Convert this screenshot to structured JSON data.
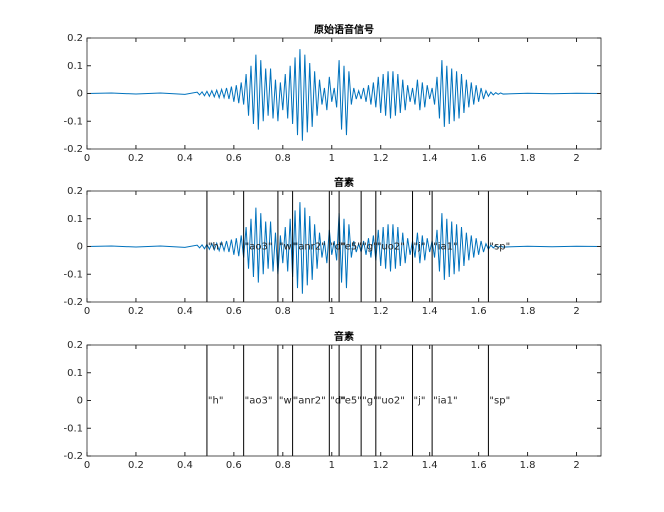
{
  "chart_data": [
    {
      "type": "line",
      "title": "原始语音信号",
      "x": [
        0,
        0.1,
        0.2,
        0.3,
        0.4,
        0.45,
        0.46,
        0.47,
        0.48,
        0.49,
        0.5,
        0.51,
        0.52,
        0.53,
        0.54,
        0.55,
        0.56,
        0.57,
        0.58,
        0.59,
        0.6,
        0.61,
        0.62,
        0.63,
        0.64,
        0.65,
        0.66,
        0.67,
        0.68,
        0.69,
        0.7,
        0.71,
        0.72,
        0.73,
        0.74,
        0.75,
        0.76,
        0.77,
        0.78,
        0.79,
        0.8,
        0.81,
        0.82,
        0.83,
        0.84,
        0.85,
        0.86,
        0.87,
        0.88,
        0.89,
        0.9,
        0.91,
        0.92,
        0.93,
        0.94,
        0.95,
        0.96,
        0.97,
        0.98,
        0.99,
        1,
        1.01,
        1.02,
        1.03,
        1.04,
        1.05,
        1.06,
        1.07,
        1.08,
        1.09,
        1.1,
        1.11,
        1.12,
        1.13,
        1.14,
        1.15,
        1.16,
        1.17,
        1.18,
        1.19,
        1.2,
        1.21,
        1.22,
        1.23,
        1.24,
        1.25,
        1.26,
        1.27,
        1.28,
        1.29,
        1.3,
        1.31,
        1.32,
        1.33,
        1.34,
        1.35,
        1.36,
        1.37,
        1.38,
        1.39,
        1.4,
        1.41,
        1.42,
        1.43,
        1.44,
        1.45,
        1.46,
        1.47,
        1.48,
        1.49,
        1.5,
        1.51,
        1.52,
        1.53,
        1.54,
        1.55,
        1.56,
        1.57,
        1.58,
        1.59,
        1.6,
        1.61,
        1.62,
        1.63,
        1.64,
        1.65,
        1.66,
        1.67,
        1.68,
        1.69,
        1.7,
        1.8,
        1.9,
        2,
        2.1
      ],
      "series": [
        {
          "color": "#0072bd",
          "values": [
            0,
            0.002,
            -0.002,
            0.002,
            -0.003,
            0.005,
            -0.005,
            0.006,
            -0.008,
            0.008,
            -0.01,
            0.01,
            -0.012,
            0.012,
            -0.015,
            0.015,
            -0.015,
            0.02,
            -0.02,
            0.025,
            -0.03,
            0.03,
            -0.035,
            0.04,
            -0.04,
            0.07,
            -0.08,
            0.1,
            -0.11,
            0.14,
            -0.13,
            0.12,
            -0.1,
            0.09,
            -0.08,
            0.09,
            -0.09,
            0.05,
            -0.1,
            0.04,
            -0.06,
            0.07,
            -0.09,
            0.1,
            -0.11,
            0.13,
            -0.15,
            0.16,
            -0.17,
            0.14,
            -0.14,
            0.11,
            -0.12,
            0.08,
            -0.08,
            0.05,
            -0.04,
            0.02,
            -0.06,
            0.06,
            -0.03,
            0.02,
            -0.05,
            0.12,
            -0.13,
            0.1,
            -0.15,
            0.08,
            -0.04,
            0.02,
            -0.02,
            0.01,
            -0.02,
            0.02,
            -0.03,
            0.03,
            -0.04,
            0.04,
            -0.05,
            0.06,
            -0.07,
            0.07,
            -0.08,
            0.08,
            -0.09,
            0.08,
            -0.08,
            0.07,
            -0.07,
            0.05,
            -0.06,
            0.03,
            -0.03,
            0.02,
            -0.04,
            0.05,
            -0.06,
            0.04,
            -0.05,
            0.03,
            -0.02,
            0.02,
            -0.04,
            0.06,
            -0.09,
            0.12,
            -0.12,
            0.1,
            -0.11,
            0.09,
            -0.1,
            0.08,
            -0.09,
            0.07,
            -0.07,
            0.05,
            -0.05,
            0.04,
            -0.04,
            0.03,
            -0.03,
            0.02,
            -0.02,
            0.01,
            -0.01,
            0.005,
            -0.005,
            0.003,
            -0.003,
            0.002,
            -0.002,
            0.001,
            -0.001,
            0.001,
            0
          ]
        }
      ],
      "xlim": [
        0,
        2.1
      ],
      "xticks": [
        0,
        0.2,
        0.4,
        0.6,
        0.8,
        1,
        1.2,
        1.4,
        1.6,
        1.8,
        2
      ],
      "ylim": [
        -0.2,
        0.2
      ],
      "yticks": [
        -0.2,
        -0.1,
        0,
        0.1,
        0.2
      ]
    },
    {
      "type": "line",
      "title": "音素",
      "x": [
        0,
        0.1,
        0.2,
        0.3,
        0.4,
        0.45,
        0.46,
        0.47,
        0.48,
        0.49,
        0.5,
        0.51,
        0.52,
        0.53,
        0.54,
        0.55,
        0.56,
        0.57,
        0.58,
        0.59,
        0.6,
        0.61,
        0.62,
        0.63,
        0.64,
        0.65,
        0.66,
        0.67,
        0.68,
        0.69,
        0.7,
        0.71,
        0.72,
        0.73,
        0.74,
        0.75,
        0.76,
        0.77,
        0.78,
        0.79,
        0.8,
        0.81,
        0.82,
        0.83,
        0.84,
        0.85,
        0.86,
        0.87,
        0.88,
        0.89,
        0.9,
        0.91,
        0.92,
        0.93,
        0.94,
        0.95,
        0.96,
        0.97,
        0.98,
        0.99,
        1,
        1.01,
        1.02,
        1.03,
        1.04,
        1.05,
        1.06,
        1.07,
        1.08,
        1.09,
        1.1,
        1.11,
        1.12,
        1.13,
        1.14,
        1.15,
        1.16,
        1.17,
        1.18,
        1.19,
        1.2,
        1.21,
        1.22,
        1.23,
        1.24,
        1.25,
        1.26,
        1.27,
        1.28,
        1.29,
        1.3,
        1.31,
        1.32,
        1.33,
        1.34,
        1.35,
        1.36,
        1.37,
        1.38,
        1.39,
        1.4,
        1.41,
        1.42,
        1.43,
        1.44,
        1.45,
        1.46,
        1.47,
        1.48,
        1.49,
        1.5,
        1.51,
        1.52,
        1.53,
        1.54,
        1.55,
        1.56,
        1.57,
        1.58,
        1.59,
        1.6,
        1.61,
        1.62,
        1.63,
        1.64,
        1.65,
        1.66,
        1.67,
        1.68,
        1.69,
        1.7,
        1.8,
        1.9,
        2,
        2.1
      ],
      "series": [
        {
          "color": "#0072bd",
          "values": [
            0,
            0.002,
            -0.002,
            0.002,
            -0.003,
            0.005,
            -0.005,
            0.006,
            -0.008,
            0.008,
            -0.01,
            0.01,
            -0.012,
            0.012,
            -0.015,
            0.015,
            -0.015,
            0.02,
            -0.02,
            0.025,
            -0.03,
            0.03,
            -0.035,
            0.04,
            -0.04,
            0.07,
            -0.08,
            0.1,
            -0.11,
            0.14,
            -0.13,
            0.12,
            -0.1,
            0.09,
            -0.08,
            0.09,
            -0.09,
            0.05,
            -0.1,
            0.04,
            -0.06,
            0.07,
            -0.09,
            0.1,
            -0.11,
            0.13,
            -0.15,
            0.16,
            -0.17,
            0.14,
            -0.14,
            0.11,
            -0.12,
            0.08,
            -0.08,
            0.05,
            -0.04,
            0.02,
            -0.06,
            0.06,
            -0.03,
            0.02,
            -0.05,
            0.12,
            -0.13,
            0.1,
            -0.15,
            0.08,
            -0.04,
            0.02,
            -0.02,
            0.01,
            -0.02,
            0.02,
            -0.03,
            0.03,
            -0.04,
            0.04,
            -0.05,
            0.06,
            -0.07,
            0.07,
            -0.08,
            0.08,
            -0.09,
            0.08,
            -0.08,
            0.07,
            -0.07,
            0.05,
            -0.06,
            0.03,
            -0.03,
            0.02,
            -0.04,
            0.05,
            -0.06,
            0.04,
            -0.05,
            0.03,
            -0.02,
            0.02,
            -0.04,
            0.06,
            -0.09,
            0.12,
            -0.12,
            0.1,
            -0.11,
            0.09,
            -0.1,
            0.08,
            -0.09,
            0.07,
            -0.07,
            0.05,
            -0.05,
            0.04,
            -0.04,
            0.03,
            -0.03,
            0.02,
            -0.02,
            0.01,
            -0.01,
            0.005,
            -0.005,
            0.003,
            -0.003,
            0.002,
            -0.002,
            0.001,
            -0.001,
            0.001,
            0
          ]
        }
      ],
      "boundaries": {
        "x": [
          0.49,
          0.64,
          0.78,
          0.84,
          0.99,
          1.03,
          1.12,
          1.18,
          1.33,
          1.41,
          1.64
        ],
        "labels": [
          "\"h\"",
          "\"ao3\"",
          "\"w\"",
          "\"anr2\"",
          "\"d\"",
          "\"e5\"",
          "\"g\"",
          "\"uo2\"",
          "\"j\"",
          "\"ia1\"",
          "\"sp\""
        ]
      },
      "xlim": [
        0,
        2.1
      ],
      "xticks": [
        0,
        0.2,
        0.4,
        0.6,
        0.8,
        1,
        1.2,
        1.4,
        1.6,
        1.8,
        2
      ],
      "ylim": [
        -0.2,
        0.2
      ],
      "yticks": [
        -0.2,
        -0.1,
        0,
        0.1,
        0.2
      ]
    },
    {
      "type": "line",
      "title": "音素",
      "boundaries": {
        "x": [
          0.49,
          0.64,
          0.78,
          0.84,
          0.99,
          1.03,
          1.12,
          1.18,
          1.33,
          1.41,
          1.64
        ],
        "labels": [
          "\"h\"",
          "\"ao3\"",
          "\"w\"",
          "\"anr2\"",
          "\"d\"",
          "\"e5\"",
          "\"g\"",
          "\"uo2\"",
          "\"j\"",
          "\"ia1\"",
          "\"sp\""
        ]
      },
      "xlim": [
        0,
        2.1
      ],
      "xticks": [
        0,
        0.2,
        0.4,
        0.6,
        0.8,
        1,
        1.2,
        1.4,
        1.6,
        1.8,
        2
      ],
      "ylim": [
        -0.2,
        0.2
      ],
      "yticks": [
        -0.2,
        -0.1,
        0,
        0.1,
        0.2
      ]
    }
  ]
}
